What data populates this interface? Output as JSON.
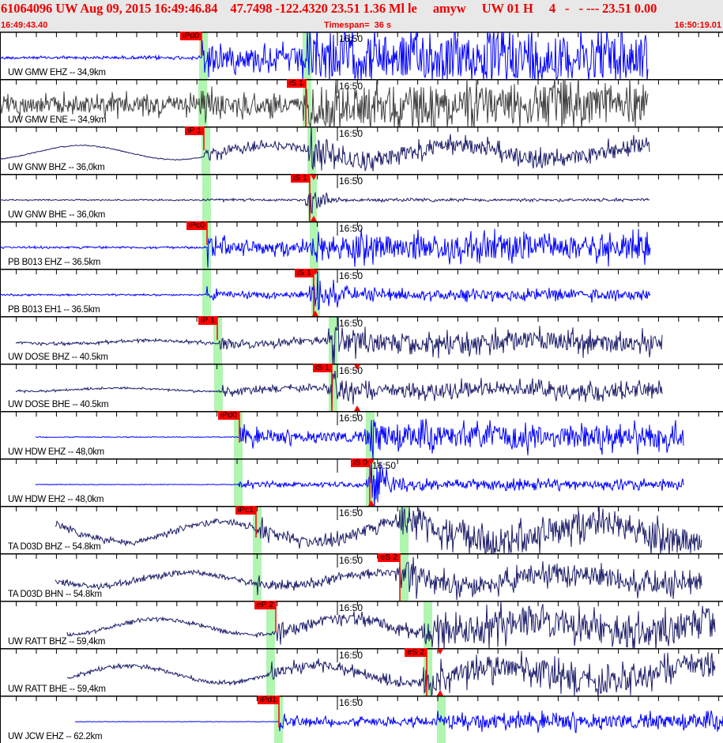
{
  "header": {
    "title": "61064096 UW Aug 09, 2015 16:49:46.84    47.7498 -122.4320 23.51 1.36 Ml le     amyw     UW 01 H     4   -   - --- 23.51 0.00",
    "start_time": "16:49:43.40",
    "timespan": "Timespan=  36 s",
    "end_time": "16:50:19.01"
  },
  "colors": {
    "header_text": "#ee0000",
    "header_bg": "#e8e8e8",
    "pick_flag": "#ff0000",
    "pick_window": "#b0f5b0",
    "trace_blue": "#0000ff",
    "trace_navy": "#1e1e6a",
    "trace_grey": "#404040"
  },
  "minute_tick_label": "16:50",
  "channels": [
    {
      "label": "UW GMW EHZ -- 34,9km",
      "pick": "iPd0",
      "trace_color": "#0000ff"
    },
    {
      "label": "UW GMW ENE -- 34,9km",
      "pick": "iS 1",
      "trace_color": "#404040"
    },
    {
      "label": "UW GNW BHZ -- 36,0km",
      "pick": "iP 1",
      "trace_color": "#1e1e6a"
    },
    {
      "label": "UW GNW BHE -- 36,0km",
      "pick": "iS 1",
      "trace_color": "#1e1e6a"
    },
    {
      "label": "PB B013 EHZ -- 36.5km",
      "pick": "iPc0",
      "trace_color": "#0000ff"
    },
    {
      "label": "PB B013 EH1 -- 36.5km",
      "pick": "iS 1",
      "trace_color": "#0000ff"
    },
    {
      "label": "UW DOSE BHZ -- 40.5km",
      "pick": "iP 1",
      "trace_color": "#1e1e6a"
    },
    {
      "label": "UW DOSE BHE -- 40.5km",
      "pick": "iS 1",
      "trace_color": "#1e1e6a"
    },
    {
      "label": "UW HDW EHZ -- 48,0km",
      "pick": "iPd0",
      "trace_color": "#0000ff"
    },
    {
      "label": "UW HDW EH2 -- 48,0km",
      "pick": "iS 0",
      "trace_color": "#0000ff"
    },
    {
      "label": "TA D03D BHZ -- 54.8km",
      "pick": "iPc1",
      "trace_color": "#1e1e6a"
    },
    {
      "label": "TA D03D BHN -- 54.8km",
      "pick": "eS 2",
      "trace_color": "#1e1e6a"
    },
    {
      "label": "UW RATT BHZ -- 59,4km",
      "pick": "eP 2",
      "trace_color": "#1e1e6a"
    },
    {
      "label": "UW RATT BHE -- 59,4km",
      "pick": "eS 2",
      "trace_color": "#1e1e6a"
    },
    {
      "label": "UW JCW EHZ -- 62.2km",
      "pick": "iPd1",
      "trace_color": "#0000ff"
    }
  ]
}
